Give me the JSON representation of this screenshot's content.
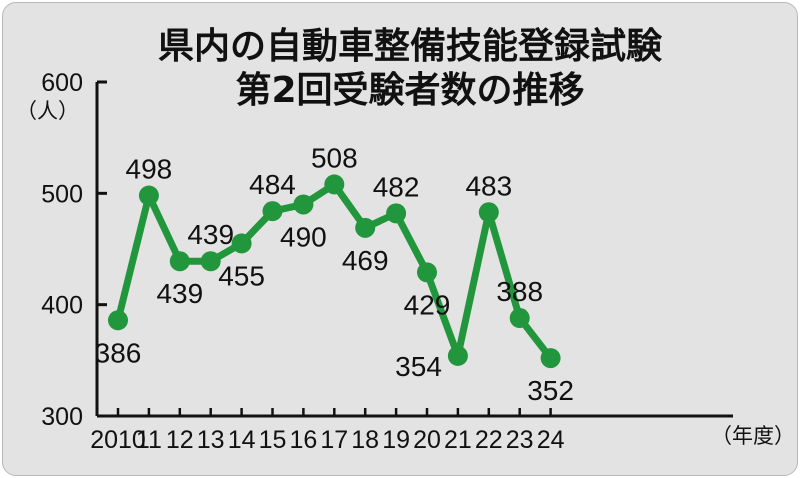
{
  "chart_data": {
    "type": "line",
    "title_lines": [
      "県内の自動車整備技能登録試験",
      "第2回受験者数の推移"
    ],
    "ylabel": "（人）",
    "xlabel": "（年度）",
    "ylim": [
      300,
      600
    ],
    "yticks": [
      300,
      400,
      500,
      600
    ],
    "categories": [
      "2010",
      "11",
      "12",
      "13",
      "14",
      "15",
      "16",
      "17",
      "18",
      "19",
      "20",
      "21",
      "22",
      "23",
      "24"
    ],
    "series": [
      {
        "values": [
          386,
          498,
          439,
          439,
          455,
          484,
          490,
          508,
          469,
          482,
          429,
          354,
          483,
          388,
          352
        ],
        "color": "#22963c"
      }
    ],
    "label_positions": [
      "below",
      "above",
      "below",
      "above",
      "below",
      "above",
      "below",
      "above",
      "below",
      "above",
      "below",
      "left",
      "above",
      "above",
      "below"
    ],
    "grid": false
  }
}
